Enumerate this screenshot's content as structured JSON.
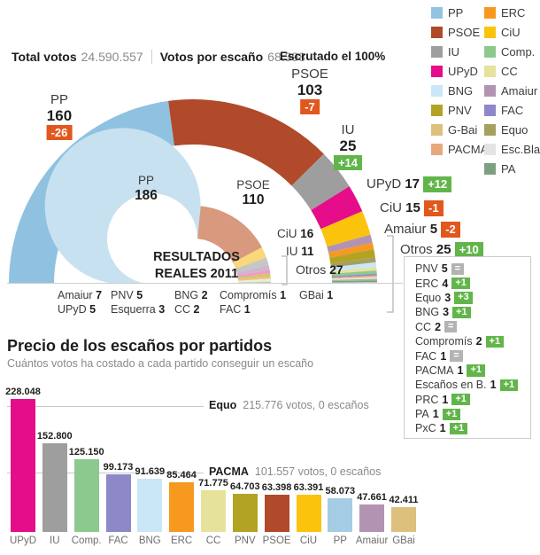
{
  "header": {
    "total_votes_label": "Total votos",
    "total_votes_value": "24.590.557",
    "votes_per_seat_label": "Votos por escaño",
    "votes_per_seat_value": "68.398",
    "scrutiny_label": "Escrutado el 100%"
  },
  "legend": {
    "left": [
      {
        "label": "PP",
        "color": "#92c3e1"
      },
      {
        "label": "PSOE",
        "color": "#b04a2a"
      },
      {
        "label": "IU",
        "color": "#9e9e9e"
      },
      {
        "label": "UPyD",
        "color": "#e60d8a"
      },
      {
        "label": "BNG",
        "color": "#c9e7f6"
      },
      {
        "label": "PNV",
        "color": "#b2a325"
      },
      {
        "label": "G-Bai",
        "color": "#ddbf7e"
      },
      {
        "label": "PACMA",
        "color": "#e8a87c"
      }
    ],
    "right": [
      {
        "label": "ERC",
        "color": "#f6991e"
      },
      {
        "label": "CiU",
        "color": "#fcc30d"
      },
      {
        "label": "Comp.",
        "color": "#8cc98f"
      },
      {
        "label": "CC",
        "color": "#e6e19b"
      },
      {
        "label": "Amaiur",
        "color": "#b294b2"
      },
      {
        "label": "FAC",
        "color": "#8d88c8"
      },
      {
        "label": "Equo",
        "color": "#a6a05f"
      },
      {
        "label": "Esc.Bla.",
        "color": "#e4e4e4"
      },
      {
        "label": "PA",
        "color": "#7fa080"
      }
    ]
  },
  "hemicycle_labels": {
    "pp": {
      "party": "PP",
      "seats": "160",
      "delta": "-26"
    },
    "psoe": {
      "party": "PSOE",
      "seats": "103",
      "delta": "-7"
    },
    "iu": {
      "party": "IU",
      "seats": "25",
      "delta": "+14"
    },
    "upyd": {
      "party": "UPyD",
      "seats": "17",
      "delta": "+12"
    },
    "ciu": {
      "party": "CiU",
      "seats": "15",
      "delta": "-1"
    },
    "amaiur": {
      "party": "Amaiur",
      "seats": "5",
      "delta": "-2"
    },
    "otros": {
      "party": "Otros",
      "seats": "25",
      "delta": "+10"
    },
    "inner_pp": {
      "party": "PP",
      "seats": "186"
    },
    "inner_psoe": {
      "party": "PSOE",
      "seats": "110"
    },
    "inner_ciu": {
      "party": "CiU",
      "seats": "16"
    },
    "inner_iu": {
      "party": "IU",
      "seats": "11"
    },
    "inner_otros": {
      "party": "Otros",
      "seats": "27"
    },
    "center_title": "RESULTADOS REALES 2011"
  },
  "otros_detail": {
    "items": [
      {
        "party": "PNV",
        "seats": "5",
        "change": "="
      },
      {
        "party": "ERC",
        "seats": "4",
        "change": "+1"
      },
      {
        "party": "Equo",
        "seats": "3",
        "change": "+3"
      },
      {
        "party": "BNG",
        "seats": "3",
        "change": "+1"
      },
      {
        "party": "CC",
        "seats": "2",
        "change": "="
      },
      {
        "party": "Compromís",
        "seats": "2",
        "change": "+1"
      },
      {
        "party": "FAC",
        "seats": "1",
        "change": "="
      },
      {
        "party": "PACMA",
        "seats": "1",
        "change": "+1"
      },
      {
        "party": "Escaños en B.",
        "seats": "1",
        "change": "+1"
      },
      {
        "party": "PRC",
        "seats": "1",
        "change": "+1"
      },
      {
        "party": "PA",
        "seats": "1",
        "change": "+1"
      },
      {
        "party": "PxC",
        "seats": "1",
        "change": "+1"
      }
    ]
  },
  "below_axis": {
    "groups": [
      [
        {
          "party": "Amaiur",
          "seats": "7"
        },
        {
          "party": "UPyD",
          "seats": "5"
        }
      ],
      [
        {
          "party": "PNV",
          "seats": "5"
        },
        {
          "party": "Esquerra",
          "seats": "3"
        }
      ],
      [
        {
          "party": "BNG",
          "seats": "2"
        },
        {
          "party": "CC",
          "seats": "2"
        }
      ],
      [
        {
          "party": "Compromís",
          "seats": "1"
        },
        {
          "party": "FAC",
          "seats": "1"
        }
      ],
      [
        {
          "party": "GBai",
          "seats": "1"
        }
      ]
    ]
  },
  "bar_section": {
    "title": "Precio de los escaños por partidos",
    "subtitle": "Cuántos votos ha costado a cada partido conseguir un escaño"
  },
  "chart_data": [
    {
      "type": "hemicycle-donut",
      "title": "Escrutado el 100%",
      "total_seats": 350,
      "series": [
        {
          "party": "PP",
          "seats": 160,
          "delta": -26,
          "color": "#8fc2e0"
        },
        {
          "party": "PSOE",
          "seats": 103,
          "delta": -7,
          "color": "#b04a2a"
        },
        {
          "party": "IU",
          "seats": 25,
          "delta": 14,
          "color": "#9e9e9e"
        },
        {
          "party": "UPyD",
          "seats": 17,
          "delta": 12,
          "color": "#e60d8a"
        },
        {
          "party": "CiU",
          "seats": 15,
          "delta": -1,
          "color": "#fcc30d"
        },
        {
          "party": "Amaiur",
          "seats": 5,
          "delta": -2,
          "color": "#b294b2"
        },
        {
          "party": "ERC",
          "seats": 4,
          "delta": 1,
          "color": "#f6991e"
        },
        {
          "party": "PNV",
          "seats": 5,
          "delta": 0,
          "color": "#b2a325"
        },
        {
          "party": "Equo",
          "seats": 3,
          "delta": 3,
          "color": "#a6a05f"
        },
        {
          "party": "BNG",
          "seats": 3,
          "delta": 1,
          "color": "#c9e7f6"
        },
        {
          "party": "CC",
          "seats": 2,
          "delta": 0,
          "color": "#e6e19b"
        },
        {
          "party": "Compromís",
          "seats": 2,
          "delta": 1,
          "color": "#8cc98f"
        },
        {
          "party": "FAC",
          "seats": 1,
          "delta": 0,
          "color": "#8d88c8"
        },
        {
          "party": "PACMA",
          "seats": 1,
          "delta": 1,
          "color": "#e8a87c"
        },
        {
          "party": "Esc.Bla.",
          "seats": 1,
          "delta": 1,
          "color": "#e4e4e4"
        },
        {
          "party": "PRC",
          "seats": 1,
          "delta": 1,
          "color": "#9fbe8f"
        },
        {
          "party": "PA",
          "seats": 1,
          "delta": 1,
          "color": "#7fa080"
        },
        {
          "party": "PxC",
          "seats": 1,
          "delta": 1,
          "color": "#b9c3cc"
        }
      ]
    },
    {
      "type": "hemicycle-donut",
      "title": "RESULTADOS REALES 2011",
      "total_seats": 350,
      "series": [
        {
          "party": "PP",
          "seats": 186,
          "color": "#c8e1f0"
        },
        {
          "party": "PSOE",
          "seats": 110,
          "color": "#d8997e"
        },
        {
          "party": "CiU",
          "seats": 16,
          "color": "#fad779"
        },
        {
          "party": "IU",
          "seats": 11,
          "color": "#c6c6c6"
        },
        {
          "party": "Amaiur",
          "seats": 7,
          "color": "#cdb6cd"
        },
        {
          "party": "UPyD",
          "seats": 5,
          "color": "#f09ac4"
        },
        {
          "party": "PNV",
          "seats": 5,
          "color": "#d0c76e"
        },
        {
          "party": "Esquerra",
          "seats": 3,
          "color": "#f8c07a"
        },
        {
          "party": "BNG",
          "seats": 2,
          "color": "#dff0f8"
        },
        {
          "party": "CC",
          "seats": 2,
          "color": "#eeeabc"
        },
        {
          "party": "Compromís",
          "seats": 1,
          "color": "#b5dcb5"
        },
        {
          "party": "FAC",
          "seats": 1,
          "color": "#b6b3dc"
        },
        {
          "party": "GBai",
          "seats": 1,
          "color": "#e6d3a8"
        }
      ]
    },
    {
      "type": "bar",
      "title": "Precio de los escaños por partidos",
      "subtitle": "Cuántos votos ha costado a cada partido conseguir un escaño",
      "categories": [
        "UPyD",
        "IU",
        "Comp.",
        "FAC",
        "BNG",
        "ERC",
        "CC",
        "PNV",
        "PSOE",
        "CiU",
        "PP",
        "Amaiur",
        "GBai"
      ],
      "values": [
        228048,
        152800,
        125150,
        99173,
        91639,
        85464,
        71775,
        64703,
        63398,
        63391,
        58073,
        47661,
        42411
      ],
      "value_labels": [
        "228.048",
        "152.800",
        "125.150",
        "99.173",
        "91.639",
        "85.464",
        "71.775",
        "64.703",
        "63.398",
        "63.391",
        "58.073",
        "47.661",
        "42.411"
      ],
      "colors": [
        "#e60d8a",
        "#9e9e9e",
        "#8cc98f",
        "#8d88c8",
        "#c9e7f6",
        "#f6991e",
        "#e6e19b",
        "#b2a325",
        "#b04a2a",
        "#fcc30d",
        "#a5cce5",
        "#b294b2",
        "#ddbf7e"
      ],
      "annotations": [
        {
          "party": "Equo",
          "value": 215776,
          "text": "215.776 votos, 0 escaños"
        },
        {
          "party": "PACMA",
          "value": 101557,
          "text": "101.557 votos, 0 escaños"
        }
      ],
      "ylim": [
        0,
        240000
      ],
      "legend_position": "none",
      "grid": false
    }
  ],
  "badge_colors": {
    "up": "#62b54a",
    "down": "#e2571d",
    "equal": "#b3b3b3"
  }
}
